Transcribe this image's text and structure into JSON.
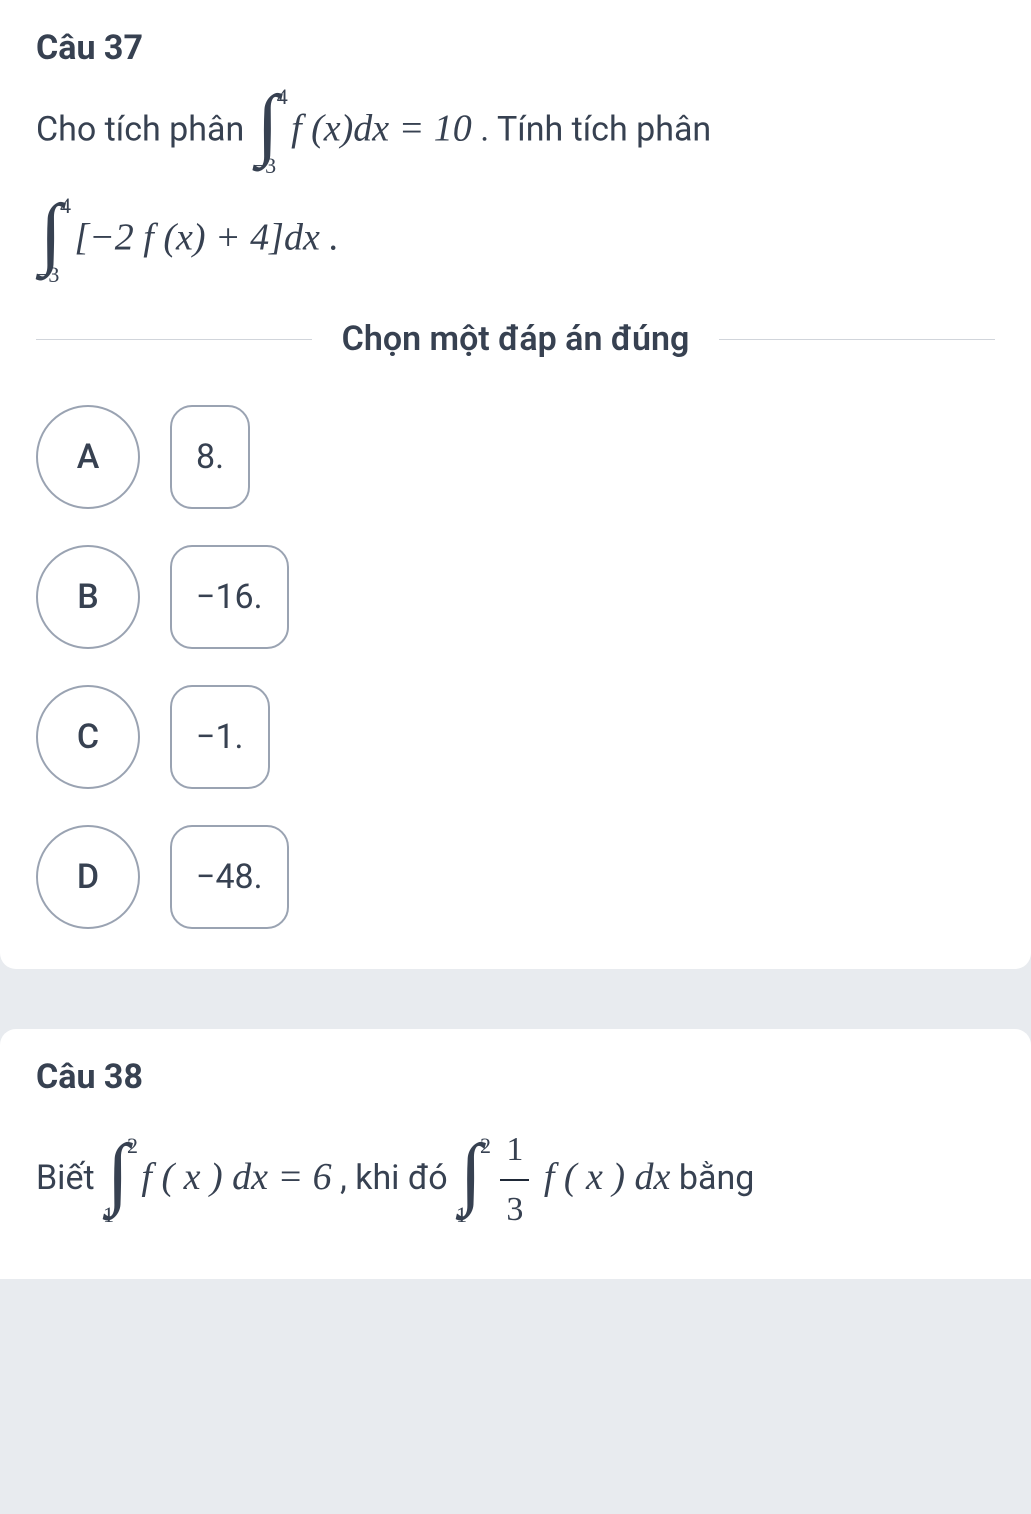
{
  "q37": {
    "title": "Câu 37",
    "prompt_before": "Cho tích phân ",
    "prompt_after": ". Tính tích phân",
    "integral1": {
      "upper": "4",
      "lower": "−3",
      "body": "f (x)dx = 10"
    },
    "integral2": {
      "upper": "4",
      "lower": "−3",
      "body": "[−2 f (x) + 4]dx ."
    },
    "choose_label": "Chọn một đáp án đúng",
    "options": [
      {
        "letter": "A",
        "value": "8."
      },
      {
        "letter": "B",
        "value": "−16."
      },
      {
        "letter": "C",
        "value": "−1."
      },
      {
        "letter": "D",
        "value": "−48."
      }
    ]
  },
  "q38": {
    "title": "Câu 38",
    "prompt_before": "Biết ",
    "integral1": {
      "upper": "2",
      "lower": "1",
      "body": "f ( x ) dx = 6"
    },
    "prompt_mid": ", khi đó ",
    "integral2": {
      "upper": "2",
      "lower": "1"
    },
    "frac": {
      "num": "1",
      "den": "3"
    },
    "integral2_body": " f ( x ) dx",
    "prompt_after": " bằng"
  },
  "style": {
    "card_bg": "#ffffff",
    "page_bg": "#e8ebef",
    "text_color": "#374151",
    "border_color": "#9aa3b2",
    "divider_color": "#d1d5db",
    "title_fontsize": 34,
    "body_fontsize": 34,
    "option_circle_diameter": 104,
    "option_box_radius": 22
  }
}
